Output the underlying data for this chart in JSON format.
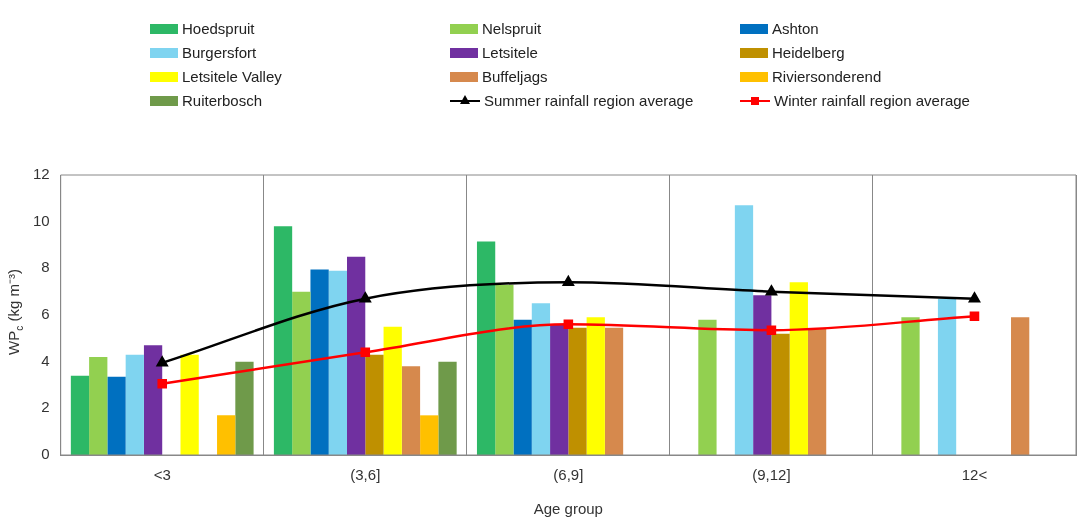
{
  "chart_data": {
    "type": "bar",
    "xlabel": "Age group",
    "ylabel": "WP$_{c}$ (kg m⁻³)",
    "categories": [
      "<3",
      "(3,6]",
      "(6,9]",
      "(9,12]",
      "12<"
    ],
    "ylim": [
      0,
      12
    ],
    "yticks": [
      0,
      2,
      4,
      6,
      8,
      10,
      12
    ],
    "grid": "x",
    "legend": "top",
    "series": [
      {
        "name": "Hoedspruit",
        "color": "#2db866",
        "values": [
          3.4,
          9.8,
          9.15,
          null,
          null
        ]
      },
      {
        "name": "Nelspruit",
        "color": "#92d050",
        "values": [
          4.2,
          7.0,
          7.3,
          5.8,
          5.9
        ]
      },
      {
        "name": "Ashton",
        "color": "#0070c0",
        "values": [
          3.35,
          7.95,
          5.8,
          null,
          null
        ]
      },
      {
        "name": "Burgersfort",
        "color": "#7fd4f0",
        "values": [
          4.3,
          7.9,
          6.5,
          10.7,
          6.7
        ]
      },
      {
        "name": "Letsitele",
        "color": "#7030a0",
        "values": [
          4.7,
          8.5,
          5.6,
          6.85,
          null
        ]
      },
      {
        "name": "Heidelberg",
        "color": "#bf9000",
        "values": [
          null,
          4.3,
          5.45,
          5.2,
          null
        ]
      },
      {
        "name": "Letsitele Valley",
        "color": "#ffff00",
        "values": [
          4.3,
          5.5,
          5.9,
          7.4,
          null
        ]
      },
      {
        "name": "Buffeljags",
        "color": "#d6894d",
        "values": [
          null,
          3.8,
          5.45,
          5.4,
          5.9
        ]
      },
      {
        "name": "Riviersonderend",
        "color": "#ffc000",
        "values": [
          1.7,
          1.7,
          null,
          null,
          null
        ]
      },
      {
        "name": "Ruiterbosch",
        "color": "#6f9a4a",
        "values": [
          4.0,
          4.0,
          null,
          null,
          null
        ]
      },
      {
        "name": "Summer rainfall region average",
        "type": "line",
        "marker": "triangle",
        "color": "#000000",
        "values": [
          3.95,
          6.7,
          7.4,
          7.0,
          6.7
        ]
      },
      {
        "name": "Winter rainfall region average",
        "type": "line",
        "marker": "square",
        "color": "#ff0000",
        "values": [
          3.05,
          4.4,
          5.6,
          5.35,
          5.95
        ]
      }
    ]
  }
}
